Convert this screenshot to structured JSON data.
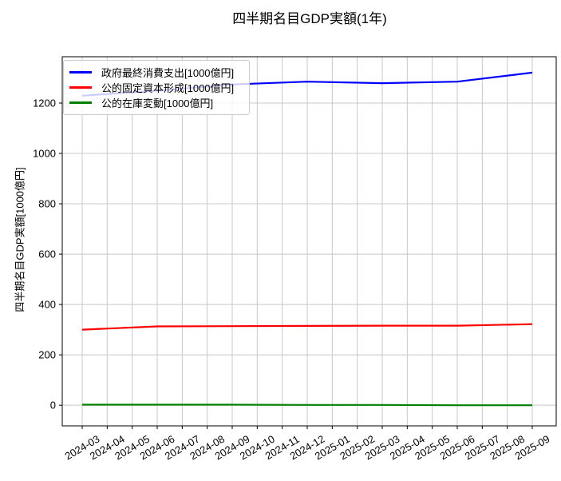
{
  "chart_data": {
    "type": "line",
    "title": "四半期名目GDP実額(1年)",
    "ylabel": "四半期名目GDP実額[1000億円]",
    "xlabel": "",
    "grid": true,
    "legend_position": "upper-left",
    "background_color": "#ffffff",
    "grid_color": "#c8c8c8",
    "spine_color": "#000000",
    "ylim": [
      -82,
      1384
    ],
    "y_ticks": [
      0,
      200,
      400,
      600,
      800,
      1000,
      1200
    ],
    "y_tick_labels": [
      "0",
      "200",
      "400",
      "600",
      "800",
      "1000",
      "1200"
    ],
    "x_tick_labels": [
      "2024-03",
      "2024-04",
      "2024-05",
      "2024-06",
      "2024-07",
      "2024-08",
      "2024-09",
      "2024-10",
      "2024-11",
      "2024-12",
      "2025-01",
      "2025-02",
      "2025-03",
      "2025-04",
      "2025-05",
      "2025-06",
      "2025-07",
      "2025-08",
      "2025-09"
    ],
    "x": [
      "2024-03",
      "2024-06",
      "2024-09",
      "2024-12",
      "2025-03",
      "2025-06",
      "2025-09"
    ],
    "x_indices": [
      0,
      3,
      6,
      9,
      12,
      15,
      18
    ],
    "series": [
      {
        "name": "政府最終消費支出[1000億円]",
        "key": "government-final-consumption",
        "color": "#0000ff",
        "values": [
          1229,
          1249,
          1274,
          1285,
          1279,
          1285,
          1321
        ]
      },
      {
        "name": "公的固定資本形成[1000億円]",
        "key": "public-fixed-capital-formation",
        "color": "#ff0000",
        "values": [
          300,
          313,
          314,
          315,
          316,
          316,
          322
        ]
      },
      {
        "name": "公的在庫変動[1000億円]",
        "key": "public-inventory-change",
        "color": "#008000",
        "values": [
          2,
          2,
          2,
          1,
          1,
          0,
          0
        ]
      }
    ]
  }
}
